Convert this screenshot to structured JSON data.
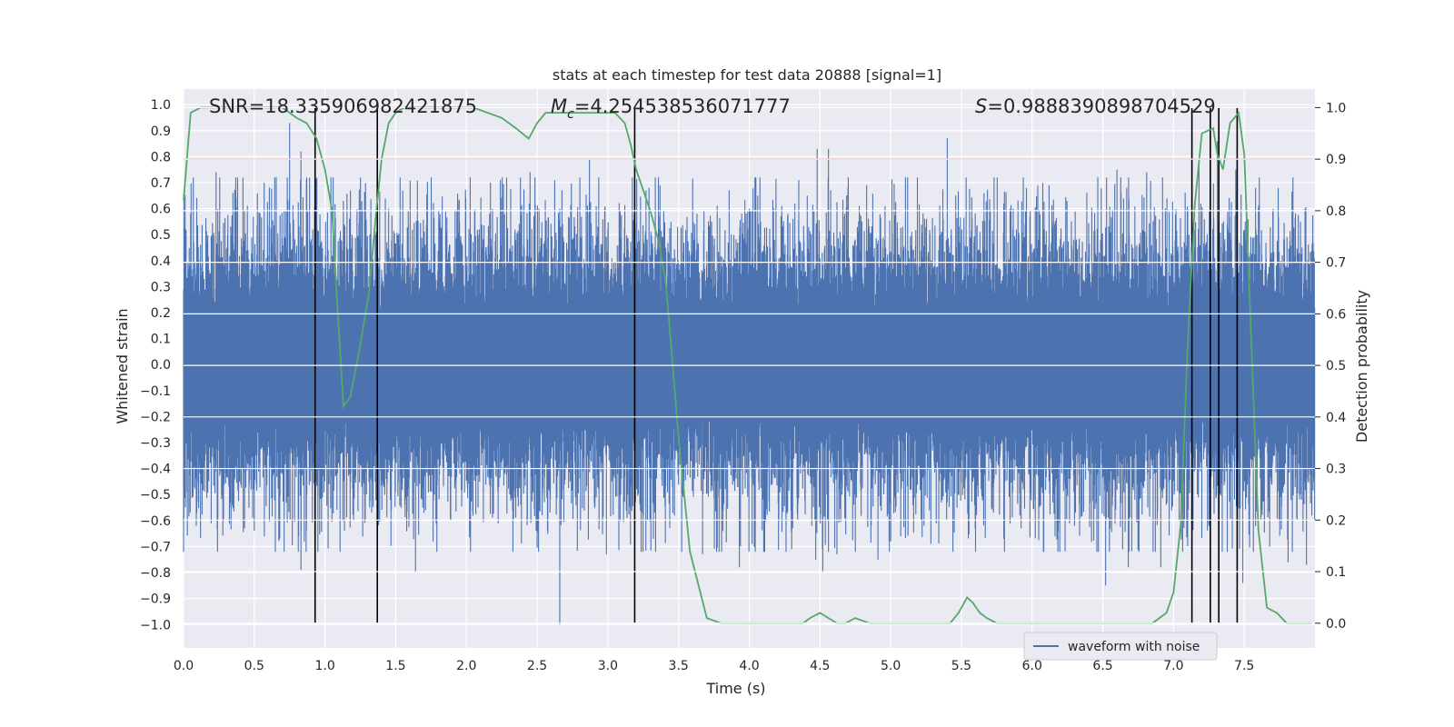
{
  "chart_data": {
    "type": "line",
    "title": "stats at each timestep for test data 20888 [signal=1]",
    "xlabel": "Time (s)",
    "ylabel_left": "Whitened strain",
    "ylabel_right": "Detection probability",
    "xlim": [
      0.0,
      8.0
    ],
    "ylim_left": [
      -1.09,
      1.06
    ],
    "ylim_right": [
      -0.048,
      1.036
    ],
    "x_ticks": [
      0.0,
      0.5,
      1.0,
      1.5,
      2.0,
      2.5,
      3.0,
      3.5,
      4.0,
      4.5,
      5.0,
      5.5,
      6.0,
      6.5,
      7.0,
      7.5
    ],
    "x_tick_labels": [
      "0.0",
      "0.5",
      "1.0",
      "1.5",
      "2.0",
      "2.5",
      "3.0",
      "3.5",
      "4.0",
      "4.5",
      "5.0",
      "5.5",
      "6.0",
      "6.5",
      "7.0",
      "7.5"
    ],
    "y_left_ticks": [
      1.0,
      0.9,
      0.8,
      0.7,
      0.6,
      0.5,
      0.4,
      0.3,
      0.2,
      0.1,
      0.0,
      -0.1,
      -0.2,
      -0.3,
      -0.4,
      -0.5,
      -0.6,
      -0.7,
      -0.8,
      -0.9,
      -1.0
    ],
    "y_left_tick_labels": [
      "1.0",
      "0.9",
      "0.8",
      "0.7",
      "0.6",
      "0.5",
      "0.4",
      "0.3",
      "0.2",
      "0.1",
      "0.0",
      "−0.1",
      "−0.2",
      "−0.3",
      "−0.4",
      "−0.5",
      "−0.6",
      "−0.7",
      "−0.8",
      "−0.9",
      "−1.0"
    ],
    "y_right_ticks": [
      1.0,
      0.9,
      0.8,
      0.7,
      0.6,
      0.5,
      0.4,
      0.3,
      0.2,
      0.1,
      0.0
    ],
    "y_right_tick_labels": [
      "1.0",
      "0.9",
      "0.8",
      "0.7",
      "0.6",
      "0.5",
      "0.4",
      "0.3",
      "0.2",
      "0.1",
      "0.0"
    ],
    "annotations": {
      "snr": "SNR=18.335906982421875",
      "mc_symbol": "M",
      "mc_sub": "c",
      "mc_value": "=4.254538536071777",
      "s_symbol": "S",
      "s_value": "=0.9888390898704529"
    },
    "threshold": 0.9,
    "vertical_markers": [
      0.93,
      1.37,
      3.19,
      7.13,
      7.26,
      7.32,
      7.45
    ],
    "series": [
      {
        "name": "waveform with noise",
        "axis": "left",
        "color": "#4c72b0",
        "kind": "noise-envelope",
        "typical_amplitude": 0.37,
        "peaks": [
          [
            0.0,
            -0.57
          ],
          [
            0.05,
            0.58
          ],
          [
            0.09,
            -0.62
          ],
          [
            0.23,
            0.74
          ],
          [
            0.24,
            -0.72
          ],
          [
            0.5,
            -0.64
          ],
          [
            0.57,
            0.7
          ],
          [
            0.68,
            -0.67
          ],
          [
            0.75,
            0.93
          ],
          [
            0.83,
            0.82
          ],
          [
            0.83,
            -0.79
          ],
          [
            0.93,
            -0.92
          ],
          [
            0.95,
            -0.72
          ],
          [
            1.13,
            0.63
          ],
          [
            1.18,
            0.67
          ],
          [
            1.33,
            -0.57
          ],
          [
            1.45,
            0.6
          ],
          [
            1.55,
            0.67
          ],
          [
            1.64,
            -0.8
          ],
          [
            1.94,
            0.63
          ],
          [
            2.17,
            0.7
          ],
          [
            2.24,
            0.71
          ],
          [
            2.45,
            0.74
          ],
          [
            2.51,
            -0.72
          ],
          [
            2.66,
            -1.0
          ],
          [
            2.66,
            0.6
          ],
          [
            2.87,
            0.79
          ],
          [
            2.99,
            -0.73
          ],
          [
            3.27,
            0.67
          ],
          [
            3.63,
            0.58
          ],
          [
            3.67,
            -0.73
          ],
          [
            3.93,
            -0.78
          ],
          [
            4.0,
            0.6
          ],
          [
            4.02,
            -0.69
          ],
          [
            4.06,
            0.65
          ],
          [
            4.23,
            0.61
          ],
          [
            4.3,
            -0.71
          ],
          [
            4.35,
            0.71
          ],
          [
            4.41,
            0.65
          ],
          [
            4.47,
            -0.75
          ],
          [
            4.52,
            -0.8
          ],
          [
            4.48,
            0.83
          ],
          [
            4.56,
            0.83
          ],
          [
            4.62,
            -0.73
          ],
          [
            4.75,
            -0.72
          ],
          [
            4.83,
            0.69
          ],
          [
            4.91,
            -0.75
          ],
          [
            5.0,
            -0.68
          ],
          [
            5.4,
            0.87
          ],
          [
            5.46,
            0.65
          ],
          [
            5.44,
            -0.72
          ],
          [
            5.6,
            -0.72
          ],
          [
            5.8,
            0.62
          ],
          [
            5.96,
            0.68
          ],
          [
            6.08,
            -0.72
          ],
          [
            6.12,
            0.69
          ],
          [
            6.3,
            -0.62
          ],
          [
            6.52,
            -0.85
          ],
          [
            6.6,
            0.75
          ],
          [
            6.68,
            -0.78
          ],
          [
            6.81,
            0.74
          ],
          [
            6.91,
            -0.78
          ],
          [
            7.18,
            0.78
          ],
          [
            7.25,
            -0.62
          ],
          [
            7.31,
            0.86
          ],
          [
            7.38,
            -0.72
          ],
          [
            7.44,
            0.75
          ],
          [
            7.49,
            -0.84
          ],
          [
            7.68,
            -0.7
          ],
          [
            7.74,
            0.68
          ],
          [
            7.81,
            -0.76
          ],
          [
            7.93,
            0.6
          ],
          [
            7.94,
            -0.77
          ]
        ]
      },
      {
        "name": "detection probability",
        "axis": "right",
        "color": "#55a868",
        "x": [
          0.0,
          0.05,
          0.12,
          0.2,
          0.3,
          0.4,
          0.5,
          0.6,
          0.7,
          0.75,
          0.8,
          0.87,
          0.94,
          1.0,
          1.05,
          1.08,
          1.13,
          1.18,
          1.25,
          1.31,
          1.36,
          1.4,
          1.45,
          1.5,
          1.56,
          1.65,
          1.75,
          1.85,
          1.95,
          2.05,
          2.15,
          2.25,
          2.35,
          2.44,
          2.5,
          2.56,
          2.65,
          2.8,
          2.95,
          3.05,
          3.12,
          3.16,
          3.2,
          3.25,
          3.3,
          3.36,
          3.41,
          3.45,
          3.5,
          3.58,
          3.7,
          3.8,
          3.9,
          3.95,
          4.05,
          4.15,
          4.25,
          4.3,
          4.38,
          4.43,
          4.5,
          4.56,
          4.62,
          4.68,
          4.75,
          4.85,
          4.95,
          5.1,
          5.3,
          5.42,
          5.48,
          5.54,
          5.58,
          5.63,
          5.68,
          5.75,
          5.9,
          6.1,
          6.3,
          6.5,
          6.7,
          6.85,
          6.9,
          6.95,
          7.0,
          7.05,
          7.1,
          7.15,
          7.2,
          7.28,
          7.31,
          7.35,
          7.4,
          7.46,
          7.5,
          7.6,
          7.66,
          7.73,
          7.8,
          7.9,
          7.98
        ],
        "y": [
          0.82,
          0.99,
          1.0,
          1.0,
          1.0,
          1.0,
          1.0,
          1.0,
          1.0,
          0.99,
          0.98,
          0.97,
          0.94,
          0.88,
          0.8,
          0.65,
          0.42,
          0.44,
          0.54,
          0.64,
          0.79,
          0.9,
          0.97,
          0.99,
          1.0,
          1.0,
          1.0,
          1.0,
          1.0,
          1.0,
          0.99,
          0.98,
          0.96,
          0.94,
          0.97,
          0.99,
          0.99,
          0.99,
          0.99,
          0.99,
          0.97,
          0.93,
          0.88,
          0.84,
          0.8,
          0.74,
          0.66,
          0.53,
          0.36,
          0.14,
          0.01,
          0.0,
          0.0,
          0.0,
          0.0,
          0.0,
          0.0,
          0.0,
          0.0,
          0.01,
          0.02,
          0.01,
          0.0,
          0.0,
          0.01,
          0.0,
          0.0,
          0.0,
          0.0,
          0.0,
          0.02,
          0.05,
          0.04,
          0.02,
          0.01,
          0.0,
          0.0,
          0.0,
          0.0,
          0.0,
          0.0,
          0.0,
          0.01,
          0.02,
          0.06,
          0.19,
          0.54,
          0.81,
          0.95,
          0.96,
          0.91,
          0.88,
          0.97,
          0.99,
          0.91,
          0.18,
          0.03,
          0.02,
          0.0,
          0.0,
          0.0
        ]
      }
    ],
    "legend": {
      "label": "waveform with noise",
      "location": "lower-right"
    }
  }
}
